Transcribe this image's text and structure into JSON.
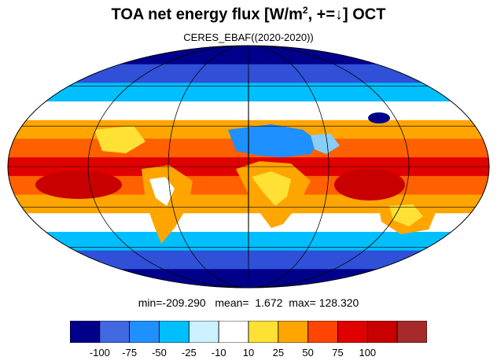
{
  "title": {
    "main": "TOA net energy flux  [W/m",
    "sup": "2",
    "tail": ", +=↓] OCT"
  },
  "subtitle": "CERES_EBAF((2020-2020))",
  "stats": {
    "min_label": "min=",
    "min": "-209.290",
    "mean_label": "mean=",
    "mean": "1.672",
    "max_label": "max=",
    "max": "128.320"
  },
  "colorbar": {
    "colors": [
      "#00008B",
      "#4169E1",
      "#1E90FF",
      "#00BFFF",
      "#CCF2FF",
      "#FFFFFF",
      "#FFE135",
      "#FFA500",
      "#FF4500",
      "#E00000",
      "#C80000",
      "#A52A2A"
    ],
    "ticks": [
      "-100",
      "-75",
      "-50",
      "-25",
      "-10",
      "10",
      "25",
      "50",
      "75",
      "100"
    ]
  },
  "map": {
    "projection": "mollweide",
    "bands": [
      {
        "color": "#00008B"
      },
      {
        "color": "#3050D8"
      },
      {
        "color": "#00BFFF"
      },
      {
        "color": "#FFFFFF"
      },
      {
        "color": "#FFA500"
      },
      {
        "color": "#FF6000"
      },
      {
        "color": "#E00000"
      },
      {
        "color": "#FF6000"
      },
      {
        "color": "#FFA500"
      },
      {
        "color": "#FFFFFF"
      },
      {
        "color": "#00BFFF"
      },
      {
        "color": "#3050D8"
      },
      {
        "color": "#00008B"
      }
    ],
    "land_colors": {
      "sahara": "#1E90FF",
      "arabia": "#87CEFA",
      "tropical_land": "#FFC000",
      "warm_ocean": "#C80000"
    }
  }
}
